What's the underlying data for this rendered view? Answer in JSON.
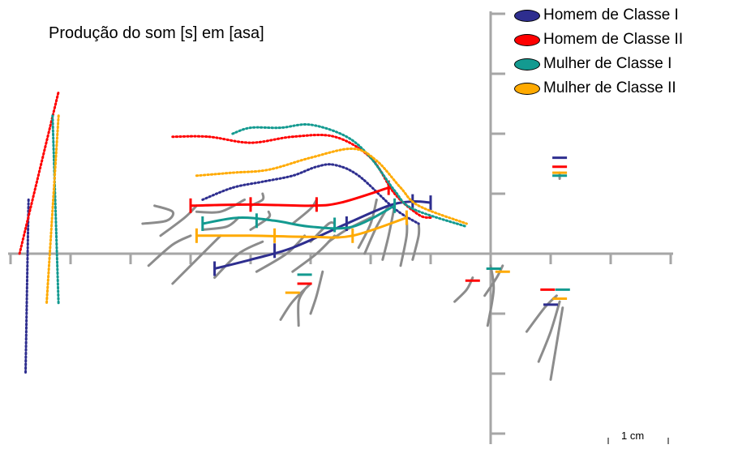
{
  "chart_data": {
    "type": "line",
    "title": "Produção do som [s] em [asa]",
    "xlabel": "",
    "ylabel": "",
    "xlim": [
      -7.9,
      3.0
    ],
    "ylim": [
      -3.1,
      4.1
    ],
    "scale_label": "1 cm",
    "legend_position": "top-right",
    "series": [
      {
        "name": "Homem de Classe I",
        "color": "#2e2e8f",
        "curve": [
          [
            -4.6,
            -0.25
          ],
          [
            -4.0,
            -0.1
          ],
          [
            -3.3,
            0.1
          ],
          [
            -2.4,
            0.5
          ],
          [
            -1.7,
            0.8
          ],
          [
            -1.3,
            0.87
          ],
          [
            -1.0,
            0.85
          ]
        ],
        "ticks": [
          [
            -4.6,
            -0.25
          ],
          [
            -3.6,
            0.05
          ],
          [
            -2.4,
            0.5
          ],
          [
            -1.3,
            0.87
          ],
          [
            -1.0,
            0.85
          ]
        ],
        "dotted": [
          [
            -4.8,
            0.9
          ],
          [
            -4.3,
            1.1
          ],
          [
            -3.8,
            1.2
          ],
          [
            -3.3,
            1.3
          ],
          [
            -2.9,
            1.45
          ],
          [
            -2.6,
            1.48
          ],
          [
            -2.2,
            1.3
          ],
          [
            -1.6,
            0.75
          ],
          [
            -1.2,
            0.5
          ]
        ],
        "left_dotted": [
          [
            -7.7,
            0.9
          ],
          [
            -7.75,
            -2.0
          ]
        ],
        "right_marks": [
          [
            1.15,
            1.6
          ],
          [
            1.0,
            -0.85
          ]
        ]
      },
      {
        "name": "Homem de Classe II",
        "color": "#ff0000",
        "curve": [
          [
            -5.0,
            0.8
          ],
          [
            -4.0,
            0.82
          ],
          [
            -3.0,
            0.8
          ],
          [
            -2.5,
            0.85
          ],
          [
            -1.7,
            1.1
          ]
        ],
        "ticks": [
          [
            -5.0,
            0.8
          ],
          [
            -4.0,
            0.82
          ],
          [
            -2.9,
            0.82
          ],
          [
            -1.7,
            1.1
          ]
        ],
        "dotted": [
          [
            -5.3,
            1.95
          ],
          [
            -4.7,
            1.95
          ],
          [
            -4.0,
            1.85
          ],
          [
            -3.3,
            1.95
          ],
          [
            -2.6,
            1.95
          ],
          [
            -2.0,
            1.6
          ],
          [
            -1.6,
            1.0
          ],
          [
            -1.2,
            0.65
          ],
          [
            -1.0,
            0.6
          ]
        ],
        "left_dotted": [
          [
            -7.85,
            0.0
          ],
          [
            -7.2,
            2.7
          ]
        ],
        "right_marks": [
          [
            1.15,
            1.45
          ],
          [
            0.95,
            -0.6
          ],
          [
            -0.3,
            -0.45
          ],
          [
            -3.1,
            -0.5
          ]
        ]
      },
      {
        "name": "Mulher de Classe I",
        "color": "#139a90",
        "curve": [
          [
            -4.8,
            0.5
          ],
          [
            -4.2,
            0.6
          ],
          [
            -3.6,
            0.55
          ],
          [
            -3.0,
            0.45
          ],
          [
            -2.3,
            0.45
          ],
          [
            -1.6,
            0.8
          ]
        ],
        "ticks": [
          [
            -4.8,
            0.5
          ],
          [
            -3.9,
            0.55
          ],
          [
            -2.6,
            0.48
          ],
          [
            -1.6,
            0.8
          ]
        ],
        "dotted": [
          [
            -4.3,
            2.0
          ],
          [
            -4.0,
            2.1
          ],
          [
            -3.5,
            2.1
          ],
          [
            -3.0,
            2.15
          ],
          [
            -2.4,
            1.95
          ],
          [
            -2.0,
            1.6
          ],
          [
            -1.6,
            1.05
          ],
          [
            -1.3,
            0.75
          ],
          [
            -0.4,
            0.45
          ]
        ],
        "left_dotted": [
          [
            -7.3,
            2.3
          ],
          [
            -7.2,
            -0.85
          ]
        ],
        "right_marks": [
          [
            1.15,
            1.3
          ],
          [
            1.2,
            -0.6
          ],
          [
            0.05,
            -0.25
          ],
          [
            -3.1,
            -0.35
          ]
        ]
      },
      {
        "name": "Mulher de Classe II",
        "color": "#ffaa00",
        "curve": [
          [
            -4.9,
            0.3
          ],
          [
            -4.0,
            0.3
          ],
          [
            -3.0,
            0.28
          ],
          [
            -2.3,
            0.3
          ],
          [
            -1.4,
            0.6
          ]
        ],
        "ticks": [
          [
            -4.9,
            0.3
          ],
          [
            -3.6,
            0.3
          ],
          [
            -2.3,
            0.3
          ],
          [
            -1.4,
            0.6
          ]
        ],
        "dotted": [
          [
            -4.9,
            1.3
          ],
          [
            -4.3,
            1.35
          ],
          [
            -3.7,
            1.4
          ],
          [
            -3.0,
            1.6
          ],
          [
            -2.3,
            1.75
          ],
          [
            -1.9,
            1.55
          ],
          [
            -1.5,
            1.1
          ],
          [
            -1.2,
            0.8
          ],
          [
            -0.4,
            0.5
          ]
        ],
        "left_dotted": [
          [
            -7.2,
            2.3
          ],
          [
            -7.4,
            -0.85
          ]
        ],
        "right_marks": [
          [
            1.15,
            1.35
          ],
          [
            1.15,
            -0.75
          ],
          [
            0.2,
            -0.3
          ],
          [
            -3.3,
            -0.65
          ]
        ]
      }
    ],
    "traces": [
      [
        [
          -5.8,
          0.5
        ],
        [
          -5.4,
          0.55
        ],
        [
          -5.3,
          0.7
        ],
        [
          -5.6,
          0.8
        ]
      ],
      [
        [
          -5.5,
          0.3
        ],
        [
          -5.1,
          0.6
        ],
        [
          -4.9,
          0.8
        ]
      ],
      [
        [
          -4.9,
          0.7
        ],
        [
          -4.5,
          0.7
        ],
        [
          -4.1,
          0.9
        ]
      ],
      [
        [
          -4.0,
          0.8
        ],
        [
          -3.8,
          0.9
        ],
        [
          -3.8,
          1.0
        ]
      ],
      [
        [
          -5.7,
          -0.2
        ],
        [
          -5.3,
          0.15
        ],
        [
          -5.0,
          0.3
        ]
      ],
      [
        [
          -5.3,
          -0.5
        ],
        [
          -4.7,
          0.1
        ],
        [
          -4.5,
          0.3
        ]
      ],
      [
        [
          -4.6,
          -0.4
        ],
        [
          -4.2,
          0.0
        ],
        [
          -3.8,
          0.2
        ]
      ],
      [
        [
          -4.8,
          0.4
        ],
        [
          -4.4,
          0.45
        ],
        [
          -4.2,
          0.6
        ]
      ],
      [
        [
          -4.0,
          0.4
        ],
        [
          -3.7,
          0.6
        ],
        [
          -3.7,
          0.7
        ]
      ],
      [
        [
          -3.9,
          -0.3
        ],
        [
          -3.4,
          0.0
        ],
        [
          -3.1,
          0.3
        ]
      ],
      [
        [
          -3.3,
          0.5
        ],
        [
          -3.0,
          0.75
        ],
        [
          -2.9,
          0.9
        ]
      ],
      [
        [
          -3.0,
          0.2
        ],
        [
          -2.7,
          0.5
        ],
        [
          -2.6,
          0.5
        ]
      ],
      [
        [
          -3.3,
          -0.3
        ],
        [
          -2.9,
          0.0
        ],
        [
          -2.6,
          0.3
        ]
      ],
      [
        [
          -2.7,
          0.2
        ],
        [
          -2.4,
          0.4
        ],
        [
          -2.0,
          0.6
        ]
      ],
      [
        [
          -2.2,
          0.1
        ],
        [
          -2.0,
          0.5
        ],
        [
          -1.9,
          0.9
        ]
      ],
      [
        [
          -2.1,
          0.0
        ],
        [
          -1.9,
          0.45
        ],
        [
          -1.7,
          0.8
        ]
      ],
      [
        [
          -1.8,
          -0.1
        ],
        [
          -1.7,
          0.3
        ],
        [
          -1.6,
          0.8
        ]
      ],
      [
        [
          -1.5,
          -0.2
        ],
        [
          -1.4,
          0.3
        ],
        [
          -1.4,
          0.6
        ]
      ],
      [
        [
          -1.3,
          -0.1
        ],
        [
          -1.2,
          0.3
        ],
        [
          -1.2,
          0.5
        ]
      ],
      [
        [
          -3.2,
          -1.2
        ],
        [
          -3.2,
          -0.8
        ],
        [
          -3.1,
          -0.6
        ]
      ],
      [
        [
          -3.5,
          -1.1
        ],
        [
          -3.3,
          -0.8
        ],
        [
          -3.0,
          -0.5
        ]
      ],
      [
        [
          -3.0,
          -1.0
        ],
        [
          -2.9,
          -0.7
        ],
        [
          -2.8,
          -0.3
        ]
      ],
      [
        [
          -0.6,
          -0.8
        ],
        [
          -0.4,
          -0.6
        ],
        [
          -0.3,
          -0.4
        ]
      ],
      [
        [
          -0.05,
          -1.2
        ],
        [
          0.05,
          -0.6
        ],
        [
          0.0,
          -0.2
        ]
      ],
      [
        [
          -0.1,
          -0.7
        ],
        [
          0.1,
          -0.4
        ],
        [
          0.2,
          -0.2
        ]
      ],
      [
        [
          0.6,
          -1.3
        ],
        [
          0.9,
          -0.9
        ],
        [
          1.1,
          -0.7
        ]
      ],
      [
        [
          0.8,
          -1.8
        ],
        [
          1.0,
          -1.3
        ],
        [
          1.15,
          -0.8
        ]
      ],
      [
        [
          1.0,
          -2.1
        ],
        [
          1.1,
          -1.5
        ],
        [
          1.2,
          -0.9
        ]
      ],
      [
        [
          1.15,
          1.25
        ],
        [
          1.15,
          1.35
        ]
      ]
    ]
  }
}
